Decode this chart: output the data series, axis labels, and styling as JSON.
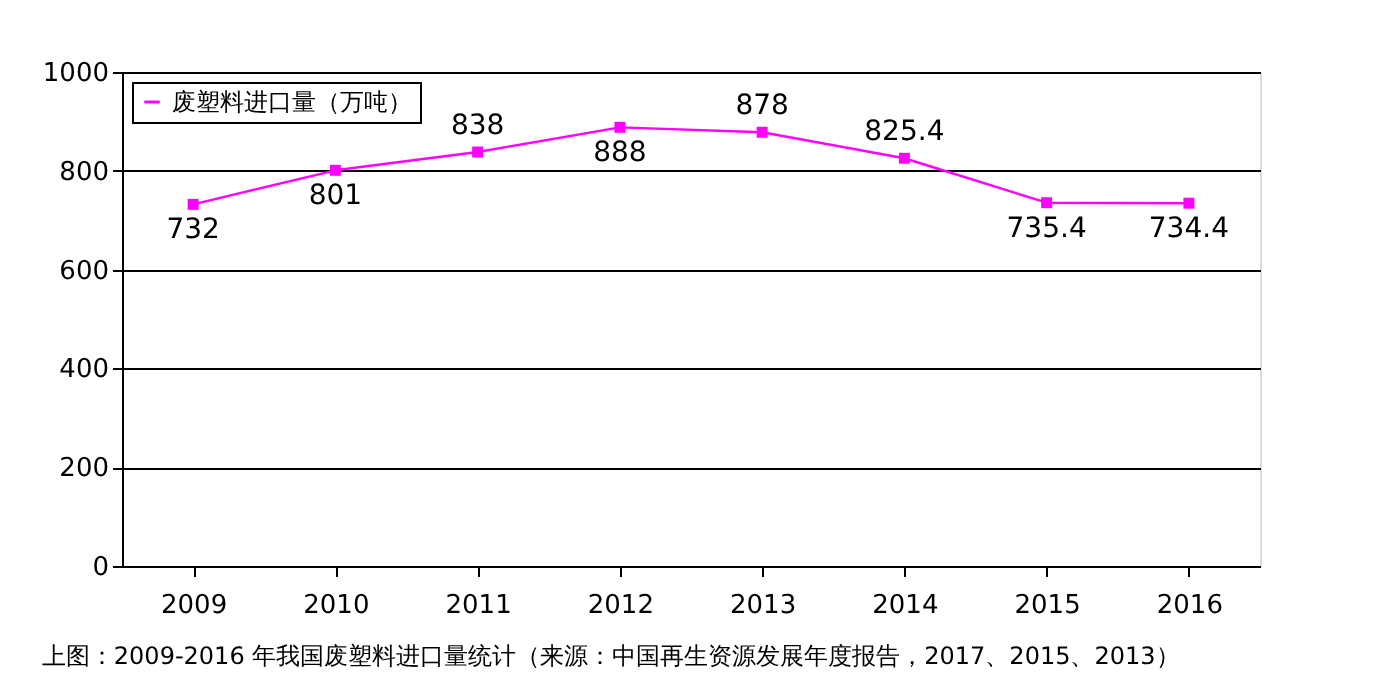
{
  "chart_data": {
    "type": "line",
    "categories": [
      "2009",
      "2010",
      "2011",
      "2012",
      "2013",
      "2014",
      "2015",
      "2016"
    ],
    "series": [
      {
        "name": "废塑料进口量（万吨）",
        "color": "#ff00ff",
        "values": [
          732,
          801,
          838,
          888,
          878,
          825.4,
          735.4,
          734.4
        ]
      }
    ],
    "ylim": [
      0,
      1000
    ],
    "yticks": [
      0,
      200,
      400,
      600,
      800,
      1000
    ],
    "grid": "y",
    "legend": "top left",
    "marker": "square",
    "line_style": "solid",
    "data_labels": true,
    "annotations": [
      "上图：2009-2016 年我国废塑料进口量统计（来源：中国再生资源发展年度报告，2017、2015、2013）"
    ]
  }
}
